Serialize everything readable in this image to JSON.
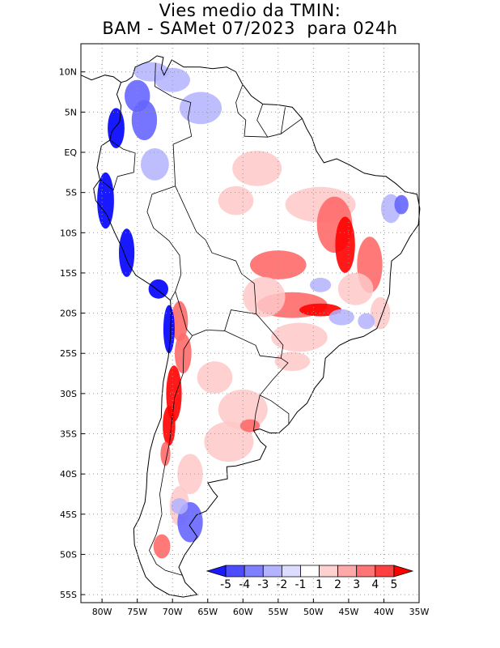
{
  "title": {
    "line1": "Vies medio da TMIN:",
    "line2": "BAM - SAMet 07/2023  para 024h"
  },
  "map": {
    "lon_range": [
      -83,
      -35
    ],
    "lat_range": [
      -56,
      13.5
    ],
    "x_ticks": [
      {
        "lon": -80,
        "label": "80W"
      },
      {
        "lon": -75,
        "label": "75W"
      },
      {
        "lon": -70,
        "label": "70W"
      },
      {
        "lon": -65,
        "label": "65W"
      },
      {
        "lon": -60,
        "label": "60W"
      },
      {
        "lon": -55,
        "label": "55W"
      },
      {
        "lon": -50,
        "label": "50W"
      },
      {
        "lon": -45,
        "label": "45W"
      },
      {
        "lon": -40,
        "label": "40W"
      },
      {
        "lon": -35,
        "label": "35W"
      }
    ],
    "y_ticks": [
      {
        "lat": 10,
        "label": "10N"
      },
      {
        "lat": 5,
        "label": "5N"
      },
      {
        "lat": 0,
        "label": "EQ"
      },
      {
        "lat": -5,
        "label": "5S"
      },
      {
        "lat": -10,
        "label": "10S"
      },
      {
        "lat": -15,
        "label": "15S"
      },
      {
        "lat": -20,
        "label": "20S"
      },
      {
        "lat": -25,
        "label": "25S"
      },
      {
        "lat": -30,
        "label": "30S"
      },
      {
        "lat": -35,
        "label": "35S"
      },
      {
        "lat": -40,
        "label": "40S"
      },
      {
        "lat": -45,
        "label": "45S"
      },
      {
        "lat": -50,
        "label": "50S"
      },
      {
        "lat": -55,
        "label": "55S"
      }
    ],
    "grid": "dotted",
    "colors": {
      "coast": "#000000",
      "land": "#ffffff",
      "cold_strong": "#0000ff",
      "cold": "#6666ff",
      "cold_light": "#b3b3ff",
      "warm_light": "#ffc8c8",
      "warm": "#ff6a6a",
      "warm_strong": "#ff0000"
    }
  },
  "colorbar": {
    "labels": [
      "-5",
      "-4",
      "-3",
      "-2",
      "-1",
      "1",
      "2",
      "3",
      "4",
      "5"
    ],
    "colors": [
      "#1a1aff",
      "#4d4dff",
      "#8080ff",
      "#b3b3ff",
      "#dcdcff",
      "#ffffff",
      "#ffd0d0",
      "#ffa8a8",
      "#ff7575",
      "#ff4040",
      "#ff0000"
    ]
  }
}
